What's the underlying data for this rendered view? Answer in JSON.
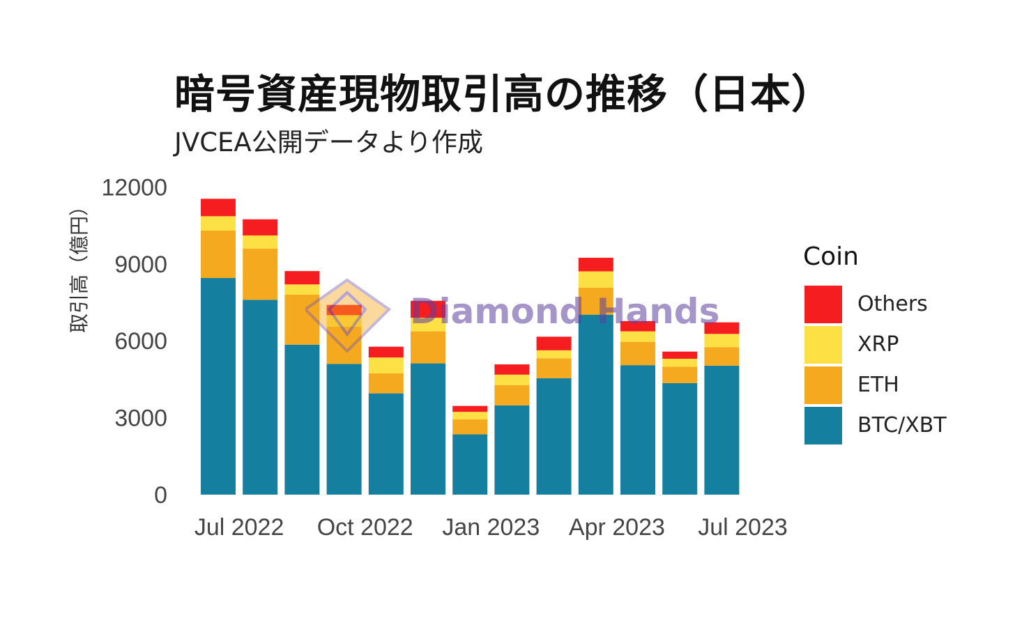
{
  "title": "暗号資産現物取引高の推移（日本）",
  "subtitle": "JVCEA公開データより作成",
  "watermark_text": "Diamond Hands",
  "chart_data": {
    "type": "bar",
    "stacked": true,
    "ylabel": "取引高（億円）",
    "xlabel": "",
    "ylim": [
      0,
      12500
    ],
    "y_ticks": [
      0,
      3000,
      6000,
      9000,
      12000
    ],
    "x_ticks": [
      "Jul 2022",
      "Oct 2022",
      "Jan 2023",
      "Apr 2023",
      "Jul 2023"
    ],
    "categories": [
      "2022-06",
      "2022-07",
      "2022-08",
      "2022-09",
      "2022-10",
      "2022-11",
      "2022-12",
      "2023-01",
      "2023-02",
      "2023-03",
      "2023-04",
      "2023-05",
      "2023-06"
    ],
    "legend_title": "Coin",
    "legend_position": "right",
    "series": [
      {
        "name": "BTC/XBT",
        "color": "#157FA0",
        "values": [
          8450,
          7600,
          5850,
          5100,
          3950,
          5120,
          2350,
          3480,
          4540,
          7020,
          5050,
          4350,
          5030
        ]
      },
      {
        "name": "ETH",
        "color": "#F5A91E",
        "values": [
          1850,
          2000,
          1950,
          1450,
          780,
          1250,
          590,
          790,
          780,
          1050,
          910,
          640,
          720
        ]
      },
      {
        "name": "XRP",
        "color": "#FCE044",
        "values": [
          560,
          510,
          400,
          450,
          620,
          530,
          290,
          410,
          310,
          640,
          410,
          310,
          520
        ]
      },
      {
        "name": "Others",
        "color": "#F61D20",
        "values": [
          680,
          630,
          520,
          400,
          420,
          660,
          230,
          400,
          530,
          530,
          400,
          280,
          450
        ]
      }
    ],
    "grid": false
  }
}
